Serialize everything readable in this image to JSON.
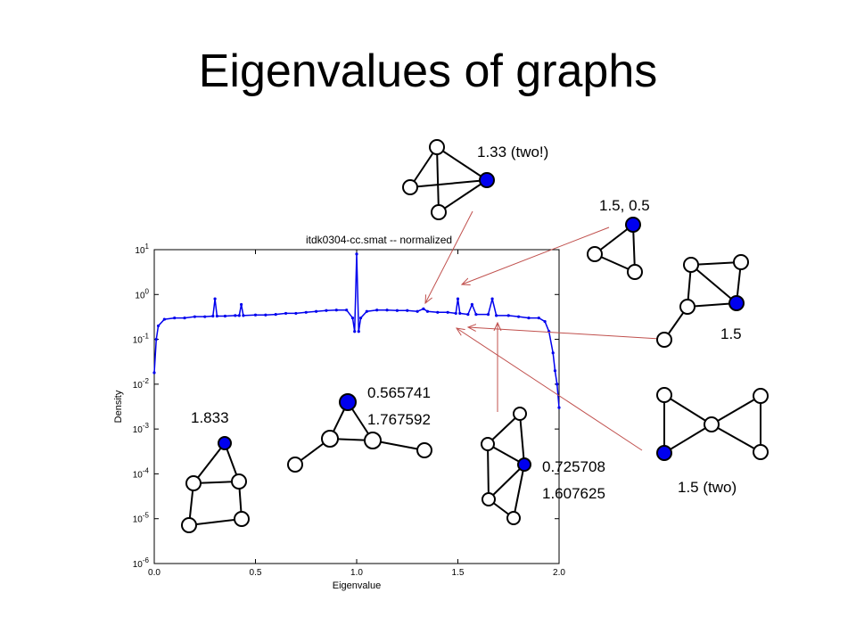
{
  "slide_title": "Eigenvalues of graphs",
  "chart_data": {
    "type": "line",
    "title": "itdk0304-cc.smat -- normalized",
    "x_label": "Eigenvalue",
    "y_label": "Density",
    "log_y": true,
    "color": "#0000ee",
    "xlim": [
      0,
      2
    ],
    "ylim": [
      1e-06,
      10
    ],
    "xticks": [
      {
        "value": 0,
        "label": "0.0"
      },
      {
        "value": 0.5,
        "label": "0.5"
      },
      {
        "value": 1,
        "label": "1.0"
      },
      {
        "value": 1.5,
        "label": "1.5"
      },
      {
        "value": 2,
        "label": "2.0"
      }
    ],
    "yticks": [
      {
        "value": 1e-06,
        "label": "10^-6"
      },
      {
        "value": 1e-05,
        "label": "10^-5"
      },
      {
        "value": 0.0001,
        "label": "10^-4"
      },
      {
        "value": 0.001,
        "label": "10^-3"
      },
      {
        "value": 0.01,
        "label": "10^-2"
      },
      {
        "value": 0.1,
        "label": "10^-1"
      },
      {
        "value": 1,
        "label": "10^0"
      },
      {
        "value": 10,
        "label": "10^1"
      }
    ],
    "x": [
      0,
      0.01,
      0.02,
      0.05,
      0.1,
      0.15,
      0.2,
      0.25,
      0.29,
      0.3,
      0.31,
      0.35,
      0.4,
      0.42,
      0.43,
      0.44,
      0.5,
      0.55,
      0.6,
      0.65,
      0.7,
      0.75,
      0.8,
      0.85,
      0.9,
      0.95,
      0.98,
      0.99,
      1.0,
      1.01,
      1.02,
      1.05,
      1.1,
      1.15,
      1.2,
      1.25,
      1.3,
      1.33,
      1.35,
      1.4,
      1.45,
      1.49,
      1.5,
      1.51,
      1.55,
      1.57,
      1.59,
      1.65,
      1.67,
      1.69,
      1.75,
      1.8,
      1.85,
      1.9,
      1.93,
      1.95,
      1.97,
      1.98,
      1.99,
      2.0
    ],
    "values": [
      0.018,
      0.1,
      0.2,
      0.28,
      0.3,
      0.3,
      0.32,
      0.32,
      0.33,
      0.8,
      0.33,
      0.33,
      0.34,
      0.34,
      0.6,
      0.34,
      0.35,
      0.35,
      0.36,
      0.38,
      0.38,
      0.4,
      0.42,
      0.44,
      0.45,
      0.45,
      0.3,
      0.15,
      8,
      0.15,
      0.3,
      0.42,
      0.45,
      0.45,
      0.44,
      0.44,
      0.42,
      0.48,
      0.42,
      0.4,
      0.4,
      0.38,
      0.8,
      0.38,
      0.36,
      0.6,
      0.36,
      0.36,
      0.8,
      0.34,
      0.34,
      0.32,
      0.3,
      0.3,
      0.25,
      0.15,
      0.05,
      0.02,
      0.01,
      0.003
    ]
  },
  "annotations": [
    "1.33 (two!)",
    "1.5, 0.5",
    "1.5",
    "1.5 (two)",
    "1.833",
    "0.565741",
    "1.767592",
    "0.725708",
    "1.607625"
  ]
}
